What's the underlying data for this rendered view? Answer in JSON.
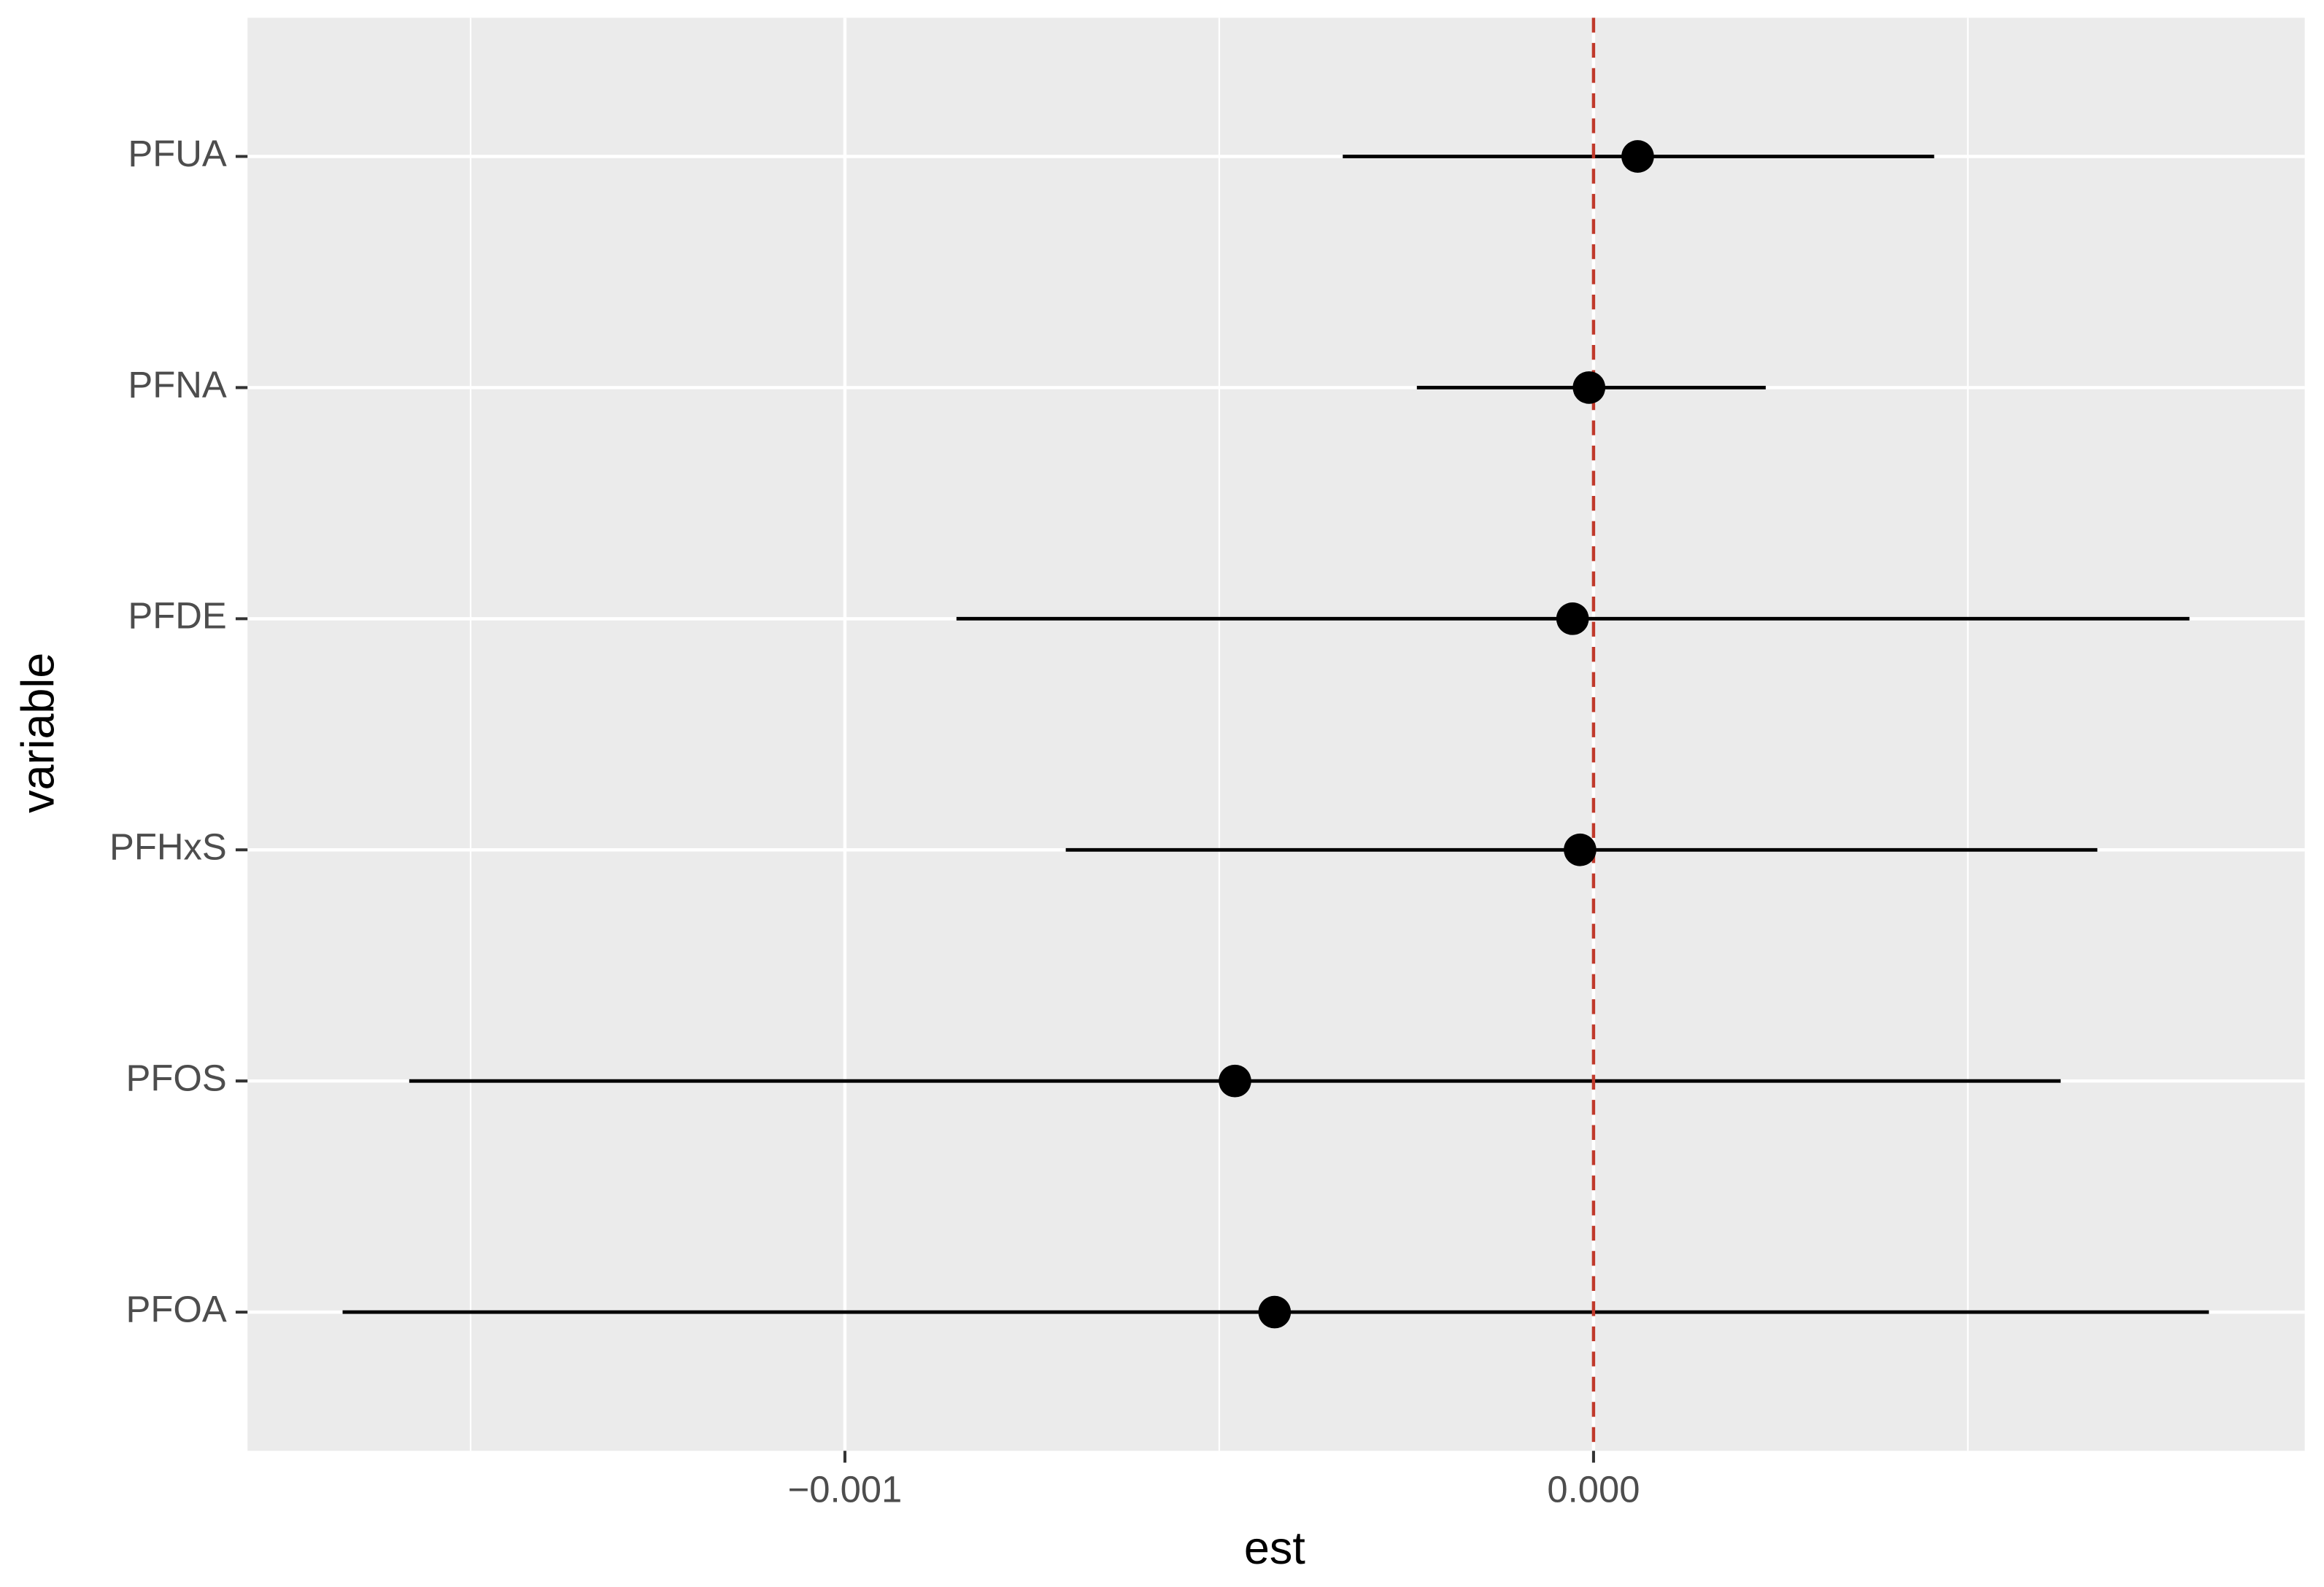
{
  "chart_data": {
    "type": "forest",
    "x_label": "est",
    "y_label": "variable",
    "categories": [
      "PFOA",
      "PFOS",
      "PFHxS",
      "PFDE",
      "PFNA",
      "PFUA"
    ],
    "values": [
      -0.000426,
      -0.000479,
      -1.8e-05,
      -2.8e-05,
      -6e-06,
      5.9e-05
    ],
    "lower": [
      -0.001671,
      -0.001582,
      -0.000705,
      -0.000851,
      -0.000236,
      -0.000335
    ],
    "upper": [
      0.000822,
      0.000624,
      0.000673,
      0.000796,
      0.00023,
      0.000455
    ],
    "color": "#000000",
    "xlim": [
      -0.001798,
      0.00095
    ],
    "xticks": [
      {
        "value": -0.001,
        "label": "−0.001"
      },
      {
        "value": 0,
        "label": "0.000"
      }
    ],
    "xminorticks": [
      -0.0015,
      -0.0005,
      0.0005
    ],
    "vline": 0,
    "vline_color": "#c0392b",
    "grid": true
  }
}
